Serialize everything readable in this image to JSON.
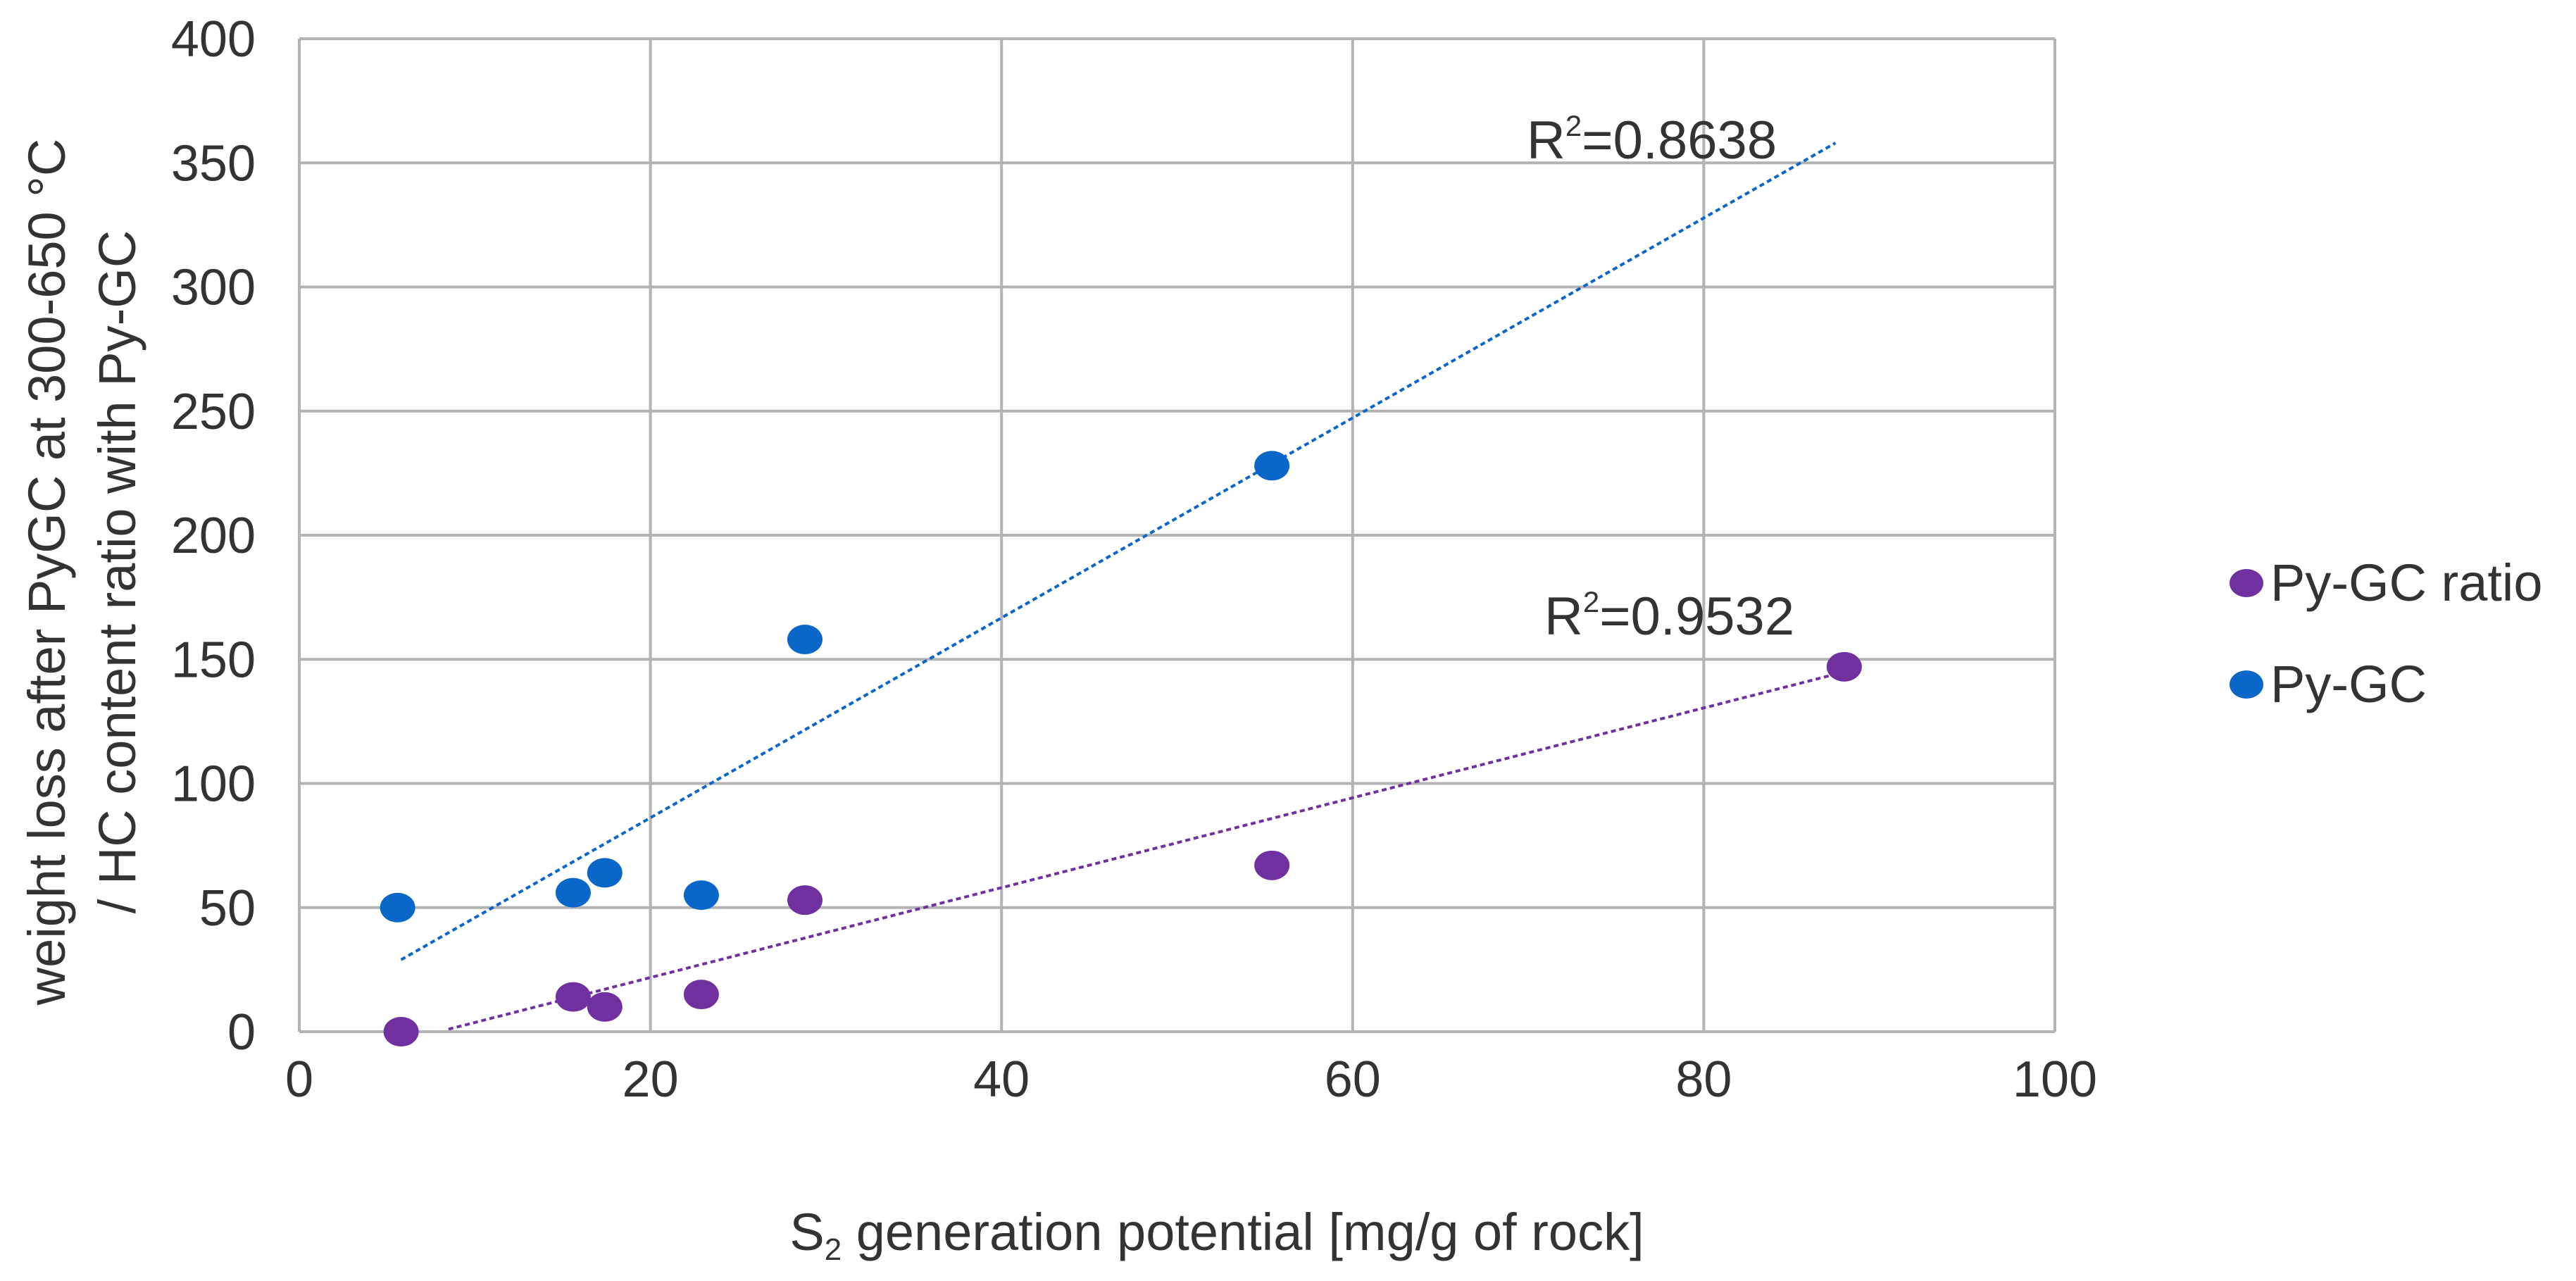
{
  "chart_data": {
    "type": "scatter",
    "title": "",
    "xlabel": {
      "prefix": "S",
      "subscript": "2",
      "rest": " generation  potential [mg/g of rock]"
    },
    "ylabel_lines": [
      "weight loss after PyGC at 300-650 °C",
      "/ HC content ratio with Py-GC"
    ],
    "xlim": [
      0,
      100
    ],
    "ylim": [
      0,
      400
    ],
    "xticks": [
      0,
      20,
      40,
      60,
      80,
      100
    ],
    "yticks": [
      0,
      50,
      100,
      150,
      200,
      250,
      300,
      350,
      400
    ],
    "grid": true,
    "legend_position": "right",
    "series": [
      {
        "name": "Py-GC ratio",
        "color": "#7030a0",
        "points": [
          {
            "x": 5.8,
            "y": 0
          },
          {
            "x": 15.6,
            "y": 14
          },
          {
            "x": 17.4,
            "y": 10
          },
          {
            "x": 22.9,
            "y": 15
          },
          {
            "x": 28.8,
            "y": 53
          },
          {
            "x": 55.4,
            "y": 67
          },
          {
            "x": 88.0,
            "y": 147
          }
        ],
        "trendline": {
          "x_start": 8.5,
          "y_start": 1,
          "x_end": 87.5,
          "y_end": 144
        },
        "r2": {
          "base": "R",
          "exp": "2",
          "value": "=0.9532"
        }
      },
      {
        "name": "Py-GC",
        "color": "#0a66c8",
        "points": [
          {
            "x": 5.6,
            "y": 50
          },
          {
            "x": 15.6,
            "y": 56
          },
          {
            "x": 17.4,
            "y": 64
          },
          {
            "x": 22.9,
            "y": 55
          },
          {
            "x": 28.8,
            "y": 158
          },
          {
            "x": 55.4,
            "y": 228
          }
        ],
        "trendline": {
          "x_start": 5.8,
          "y_start": 29,
          "x_end": 87.5,
          "y_end": 358
        },
        "r2": {
          "base": "R",
          "exp": "2",
          "value": "=0.8638"
        }
      }
    ]
  }
}
